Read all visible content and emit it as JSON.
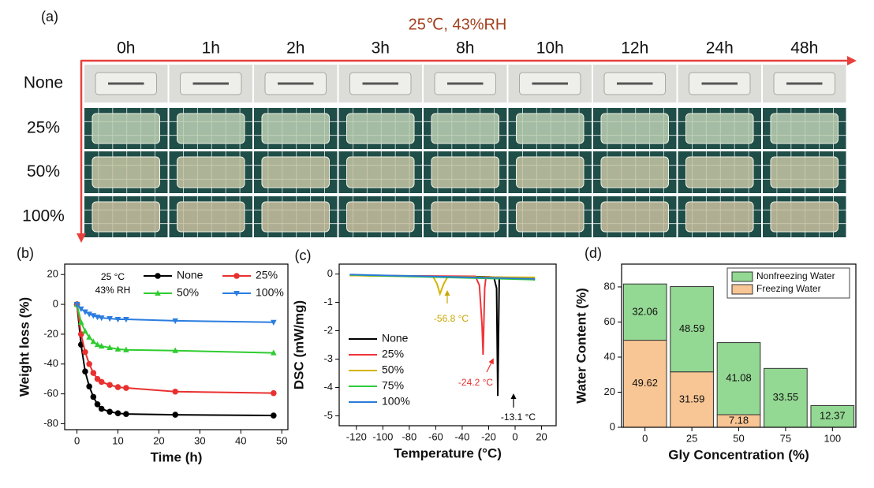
{
  "label": "(a)",
  "photo_grid": {
    "title": "25℃, 43%RH",
    "columns": [
      "0h",
      "1h",
      "2h",
      "3h",
      "8h",
      "10h",
      "12h",
      "24h",
      "48h"
    ],
    "rows": [
      "None",
      "25%",
      "50%",
      "100%"
    ]
  },
  "chart_data": [
    {
      "type": "line",
      "label": "(b)",
      "xlabel": "Time (h)",
      "ylabel": "Weight loss (%)",
      "annotations": [
        "25 °C",
        "43% RH"
      ],
      "x": [
        0,
        1,
        2,
        3,
        4,
        5,
        6,
        8,
        10,
        12,
        24,
        48
      ],
      "series": [
        {
          "name": "None",
          "color": "#000000",
          "marker": "o",
          "values": [
            0,
            -27,
            -45,
            -55,
            -62,
            -67,
            -70,
            -72,
            -73,
            -73.5,
            -74,
            -74.5
          ]
        },
        {
          "name": "25%",
          "color": "#e8312f",
          "marker": "o",
          "values": [
            0,
            -20,
            -32,
            -40,
            -46,
            -50,
            -52,
            -54,
            -55.5,
            -56,
            -58.5,
            -59.5
          ]
        },
        {
          "name": "50%",
          "color": "#2fcc2f",
          "marker": "^",
          "values": [
            0,
            -12,
            -18,
            -22,
            -25,
            -27,
            -28,
            -29,
            -30,
            -30.5,
            -31,
            -32.5
          ]
        },
        {
          "name": "100%",
          "color": "#2b7de0",
          "marker": "v",
          "values": [
            0,
            -3,
            -5,
            -6.5,
            -7.5,
            -8.5,
            -9,
            -9.5,
            -10,
            -10,
            -11,
            -12
          ]
        }
      ],
      "xlim": [
        -3,
        51.5
      ],
      "xticks": [
        0,
        10,
        20,
        30,
        40,
        50
      ],
      "ylim": [
        -84,
        27
      ],
      "yticks": [
        -80,
        -60,
        -40,
        -20,
        0,
        20
      ],
      "legend": "top"
    },
    {
      "type": "line",
      "label": "(c)",
      "xlabel": "Temperature (°C)",
      "ylabel": "DSC (mW/mg)",
      "annotations": [
        "-56.8 °C",
        "-24.2 °C",
        "-13.1 °C"
      ],
      "series": [
        {
          "name": "None",
          "color": "#000000",
          "x": [
            -125,
            -20,
            -16,
            -14,
            -13.1,
            -12.5,
            -12,
            -11,
            15
          ],
          "values": [
            -0.05,
            -0.1,
            -0.12,
            -0.5,
            -4.3,
            -2,
            -0.2,
            -0.12,
            -0.2
          ]
        },
        {
          "name": "25%",
          "color": "#f0353a",
          "x": [
            -125,
            -30,
            -27,
            -25,
            -24.2,
            -23,
            -22,
            15
          ],
          "values": [
            -0.05,
            -0.08,
            -0.4,
            -1.8,
            -2.85,
            -0.5,
            -0.1,
            -0.15
          ]
        },
        {
          "name": "50%",
          "color": "#d4b400",
          "x": [
            -125,
            -62,
            -59,
            -56.8,
            -54,
            -51,
            15
          ],
          "values": [
            -0.05,
            -0.1,
            -0.35,
            -0.7,
            -0.35,
            -0.1,
            -0.12
          ]
        },
        {
          "name": "75%",
          "color": "#2fcc3a",
          "x": [
            -125,
            15
          ],
          "values": [
            -0.03,
            -0.2
          ]
        },
        {
          "name": "100%",
          "color": "#2a7ad6",
          "x": [
            -125,
            15
          ],
          "values": [
            -0.02,
            -0.17
          ]
        }
      ],
      "xlim": [
        -133,
        31
      ],
      "xticks": [
        -120,
        -100,
        -80,
        -60,
        -40,
        -20,
        0,
        20
      ],
      "ylim": [
        -5.35,
        0.35
      ],
      "yticks": [
        -5,
        -4,
        -3,
        -2,
        -1,
        0
      ],
      "legend": "lower left"
    },
    {
      "type": "bar",
      "stacked": true,
      "label": "(d)",
      "xlabel": "Gly Concentration (%)",
      "ylabel": "Water Content (%)",
      "categories": [
        "0",
        "25",
        "50",
        "75",
        "100"
      ],
      "series": [
        {
          "name": "Freezing Water",
          "color": "#f8c594",
          "values": [
            49.62,
            31.59,
            7.18,
            null,
            null
          ]
        },
        {
          "name": "Nonfreezing Water",
          "color": "#93d893",
          "values": [
            32.06,
            48.59,
            41.08,
            33.55,
            12.37
          ]
        }
      ],
      "ylim": [
        0,
        93
      ],
      "yticks": [
        0,
        20,
        40,
        60,
        80
      ],
      "legend": "upper right"
    }
  ]
}
